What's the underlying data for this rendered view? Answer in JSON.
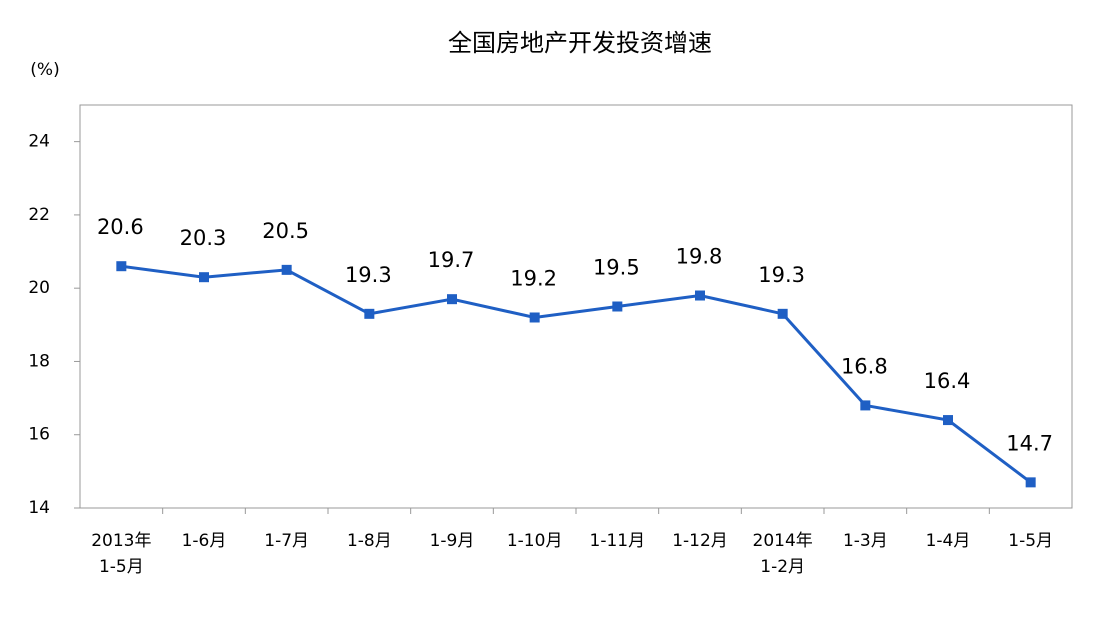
{
  "chart_data": {
    "type": "line",
    "title": "全国房地产开发投资增速",
    "y_label": "(%)",
    "categories": [
      "2013年\n1-5月",
      "1-6月",
      "1-7月",
      "1-8月",
      "1-9月",
      "1-10月",
      "1-11月",
      "1-12月",
      "2014年\n1-2月",
      "1-3月",
      "1-4月",
      "1-5月"
    ],
    "series": [
      {
        "name": "全国房地产开发投资增速",
        "color": "#1f5fc4",
        "values": [
          20.6,
          20.3,
          20.5,
          19.3,
          19.7,
          19.2,
          19.5,
          19.8,
          19.3,
          16.8,
          16.4,
          14.7
        ]
      }
    ],
    "ylim": [
      14,
      25
    ],
    "yticks": [
      14,
      16,
      18,
      20,
      22,
      24
    ],
    "grid": false,
    "legend": false
  }
}
